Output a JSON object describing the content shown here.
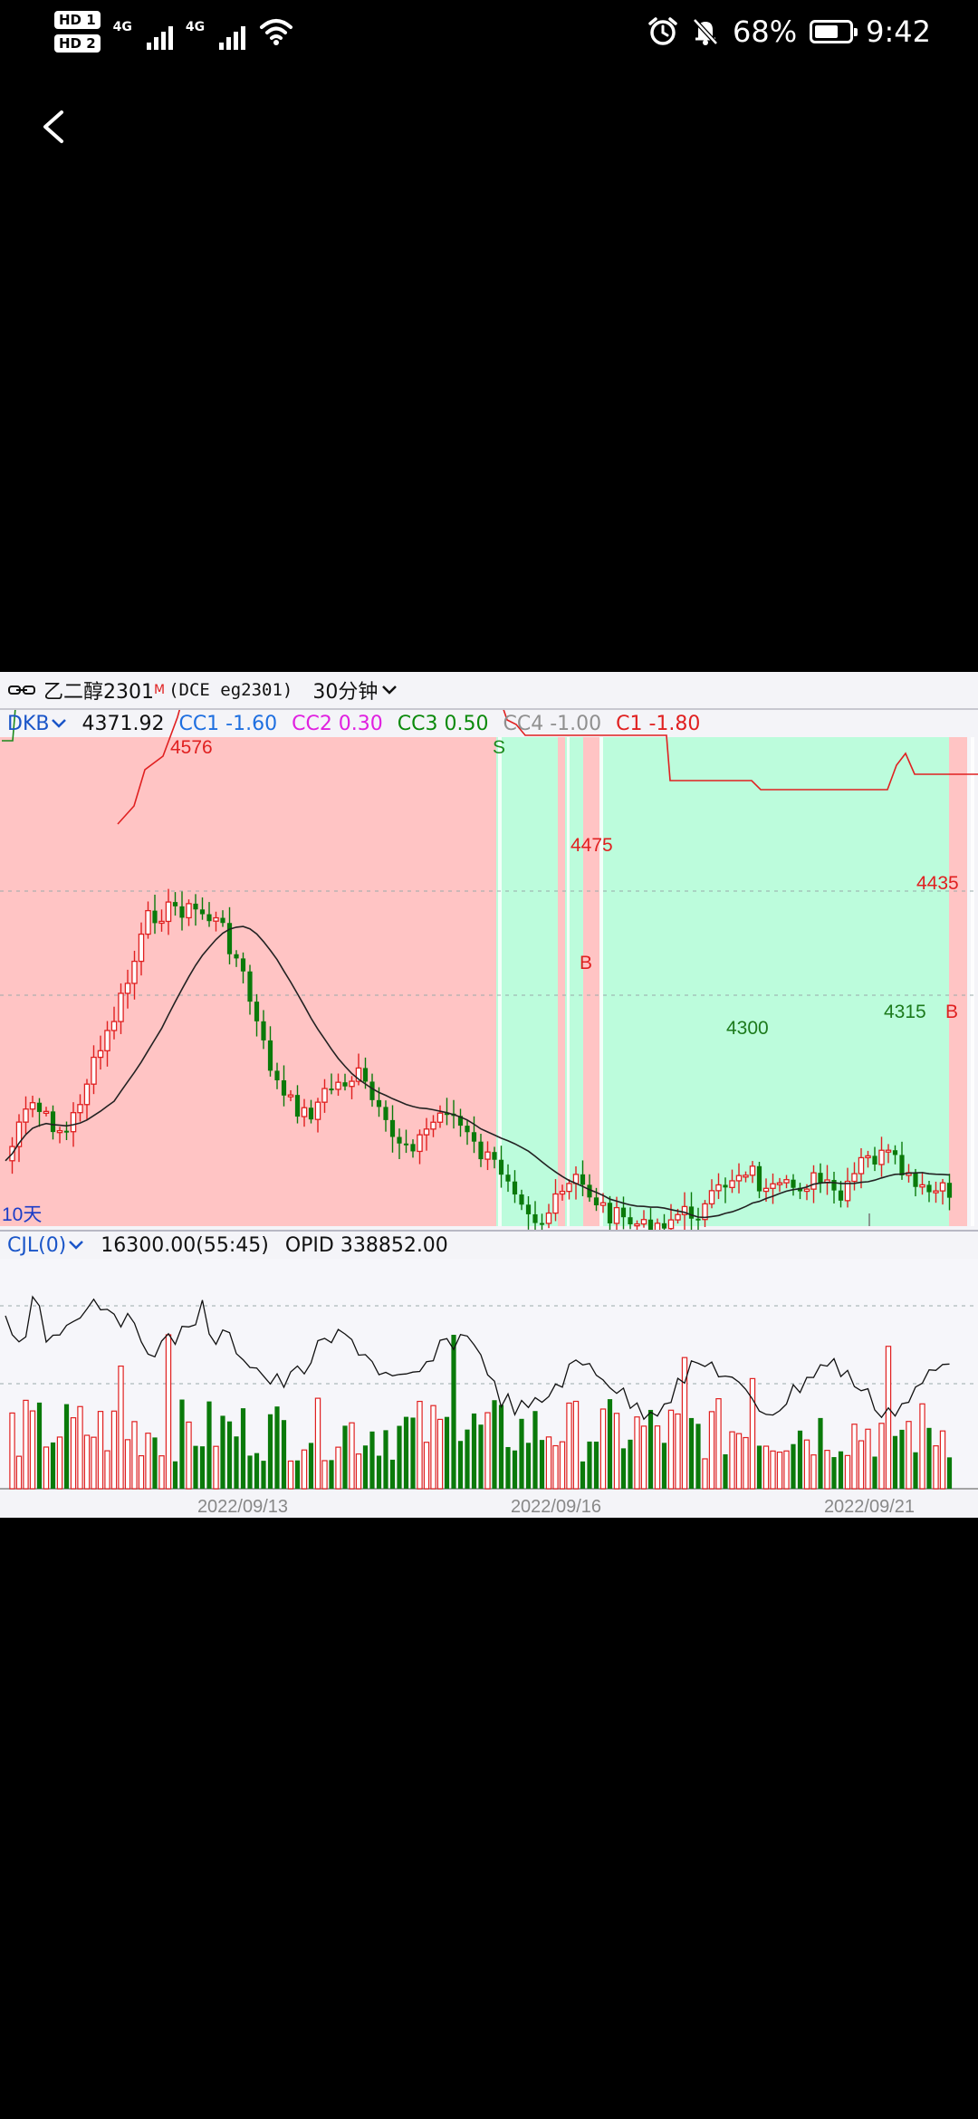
{
  "status_bar": {
    "hd1": "HD 1",
    "hd2": "HD 2",
    "net1": "4G",
    "net2": "4G",
    "battery_percent": "68%",
    "battery_level": 0.68,
    "time": "9:42",
    "icons": [
      "alarm-icon",
      "mute-bell-icon",
      "battery-icon",
      "wifi-icon",
      "signal-icon"
    ]
  },
  "nav": {
    "back_icon": "chevron-left-icon"
  },
  "chart": {
    "symbol_name": "乙二醇2301",
    "market_flag": "M",
    "exchange_code": "(DCE  eg2301)",
    "period": "30分钟",
    "indicator": {
      "name": "DKB",
      "price": "4371.92",
      "params": [
        {
          "label": "CC1 -1.60",
          "color": "#1e6fe0"
        },
        {
          "label": "CC2 0.30",
          "color": "#e020e0"
        },
        {
          "label": "CC3 0.50",
          "color": "#0c8a0c"
        },
        {
          "label": "CC4 -1.00",
          "color": "#909090"
        },
        {
          "label": "C1 -1.80",
          "color": "#e02020"
        }
      ]
    },
    "annotations": {
      "high1": "4576",
      "high2": "4475",
      "high3": "4435",
      "low1": "4300",
      "low2": "4315",
      "sell_mark": "S",
      "buy_mark1": "B",
      "buy_mark2": "B",
      "period_tag": "10天"
    },
    "volume": {
      "name": "CJL(0)",
      "value": "16300.00(55:45)",
      "opid": "OPID 338852.00"
    },
    "dates": [
      "2022/09/13",
      "2022/09/16",
      "2022/09/21"
    ],
    "colors": {
      "up": "#e02020",
      "down": "#0a7a0a",
      "bear_zone": "#ffc4c4",
      "bull_zone": "#bcfcdc"
    }
  }
}
